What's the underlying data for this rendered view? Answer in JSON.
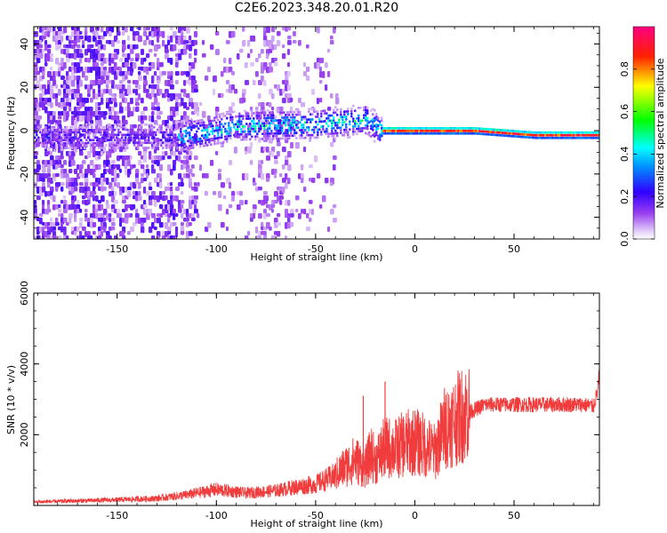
{
  "title": "C2E6.2023.348.20.01.R20",
  "colors": {
    "snr_line": "#f03c3c",
    "colormap": [
      "#ffffff",
      "#e0c8f8",
      "#a050f0",
      "#6a00ea",
      "#0000ff",
      "#00ffff",
      "#00ff00",
      "#ffff00",
      "#ff0000",
      "#ff0080"
    ]
  },
  "chart_data": [
    {
      "type": "heatmap",
      "xlabel": "Height of straight line (km)",
      "ylabel": "Frequency (Hz)",
      "xlim": [
        -192,
        93
      ],
      "ylim": [
        -50,
        48
      ],
      "x_ticks": [
        -150,
        -100,
        -50,
        0,
        50
      ],
      "y_ticks": [
        -40,
        -20,
        0,
        20,
        40
      ],
      "x_tick_labels": [
        "-150",
        "-100",
        "-50",
        "0",
        "50"
      ],
      "y_tick_labels": [
        "-40",
        "-20",
        "0",
        "20",
        "40"
      ],
      "colorbar": {
        "label": "Normalized spectral amplitude",
        "range": [
          0,
          1
        ],
        "ticks": [
          0.0,
          0.2,
          0.4,
          0.6,
          0.8
        ],
        "tick_labels": [
          "0.0",
          "0.2",
          "0.4",
          "0.6",
          "0.8"
        ]
      },
      "ridge": [
        {
          "x": -192,
          "y": -3
        },
        {
          "x": -120,
          "y": -3
        },
        {
          "x": -90,
          "y": 2
        },
        {
          "x": -50,
          "y": 3
        },
        {
          "x": -25,
          "y": 5
        },
        {
          "x": -17,
          "y": 0
        },
        {
          "x": 0,
          "y": 0
        },
        {
          "x": 30,
          "y": 0
        },
        {
          "x": 60,
          "y": -2
        },
        {
          "x": 93,
          "y": -2
        }
      ]
    },
    {
      "type": "line",
      "xlabel": "Height of straight line (km)",
      "ylabel": "SNR (10 * v/v)",
      "xlim": [
        -192,
        93
      ],
      "ylim": [
        0,
        6000
      ],
      "x_ticks": [
        -150,
        -100,
        -50,
        0,
        50
      ],
      "y_ticks": [
        2000,
        4000,
        6000
      ],
      "x_tick_labels": [
        "-150",
        "-100",
        "-50",
        "0",
        "50"
      ],
      "y_tick_labels": [
        "2000",
        "4000",
        "6000"
      ],
      "series": [
        {
          "x": [
            -192,
            -170,
            -150,
            -130,
            -115,
            -100,
            -85,
            -70,
            -60,
            -50,
            -40,
            -35,
            -30,
            -25,
            -22,
            -20,
            -18,
            -15,
            -10,
            -5,
            0,
            5,
            10,
            15,
            20,
            25,
            30,
            35,
            50,
            70,
            85,
            90,
            92,
            93
          ],
          "y": [
            100,
            130,
            160,
            200,
            300,
            450,
            350,
            420,
            520,
            600,
            850,
            1100,
            1300,
            1050,
            1500,
            1250,
            1400,
            1650,
            1600,
            1750,
            1800,
            1700,
            1500,
            2200,
            2400,
            2600,
            2700,
            2850,
            2850,
            2850,
            2850,
            2800,
            3200,
            3800
          ]
        }
      ],
      "spikes": [
        {
          "x": -26,
          "y": 3100
        },
        {
          "x": -15,
          "y": 3500
        }
      ]
    }
  ]
}
